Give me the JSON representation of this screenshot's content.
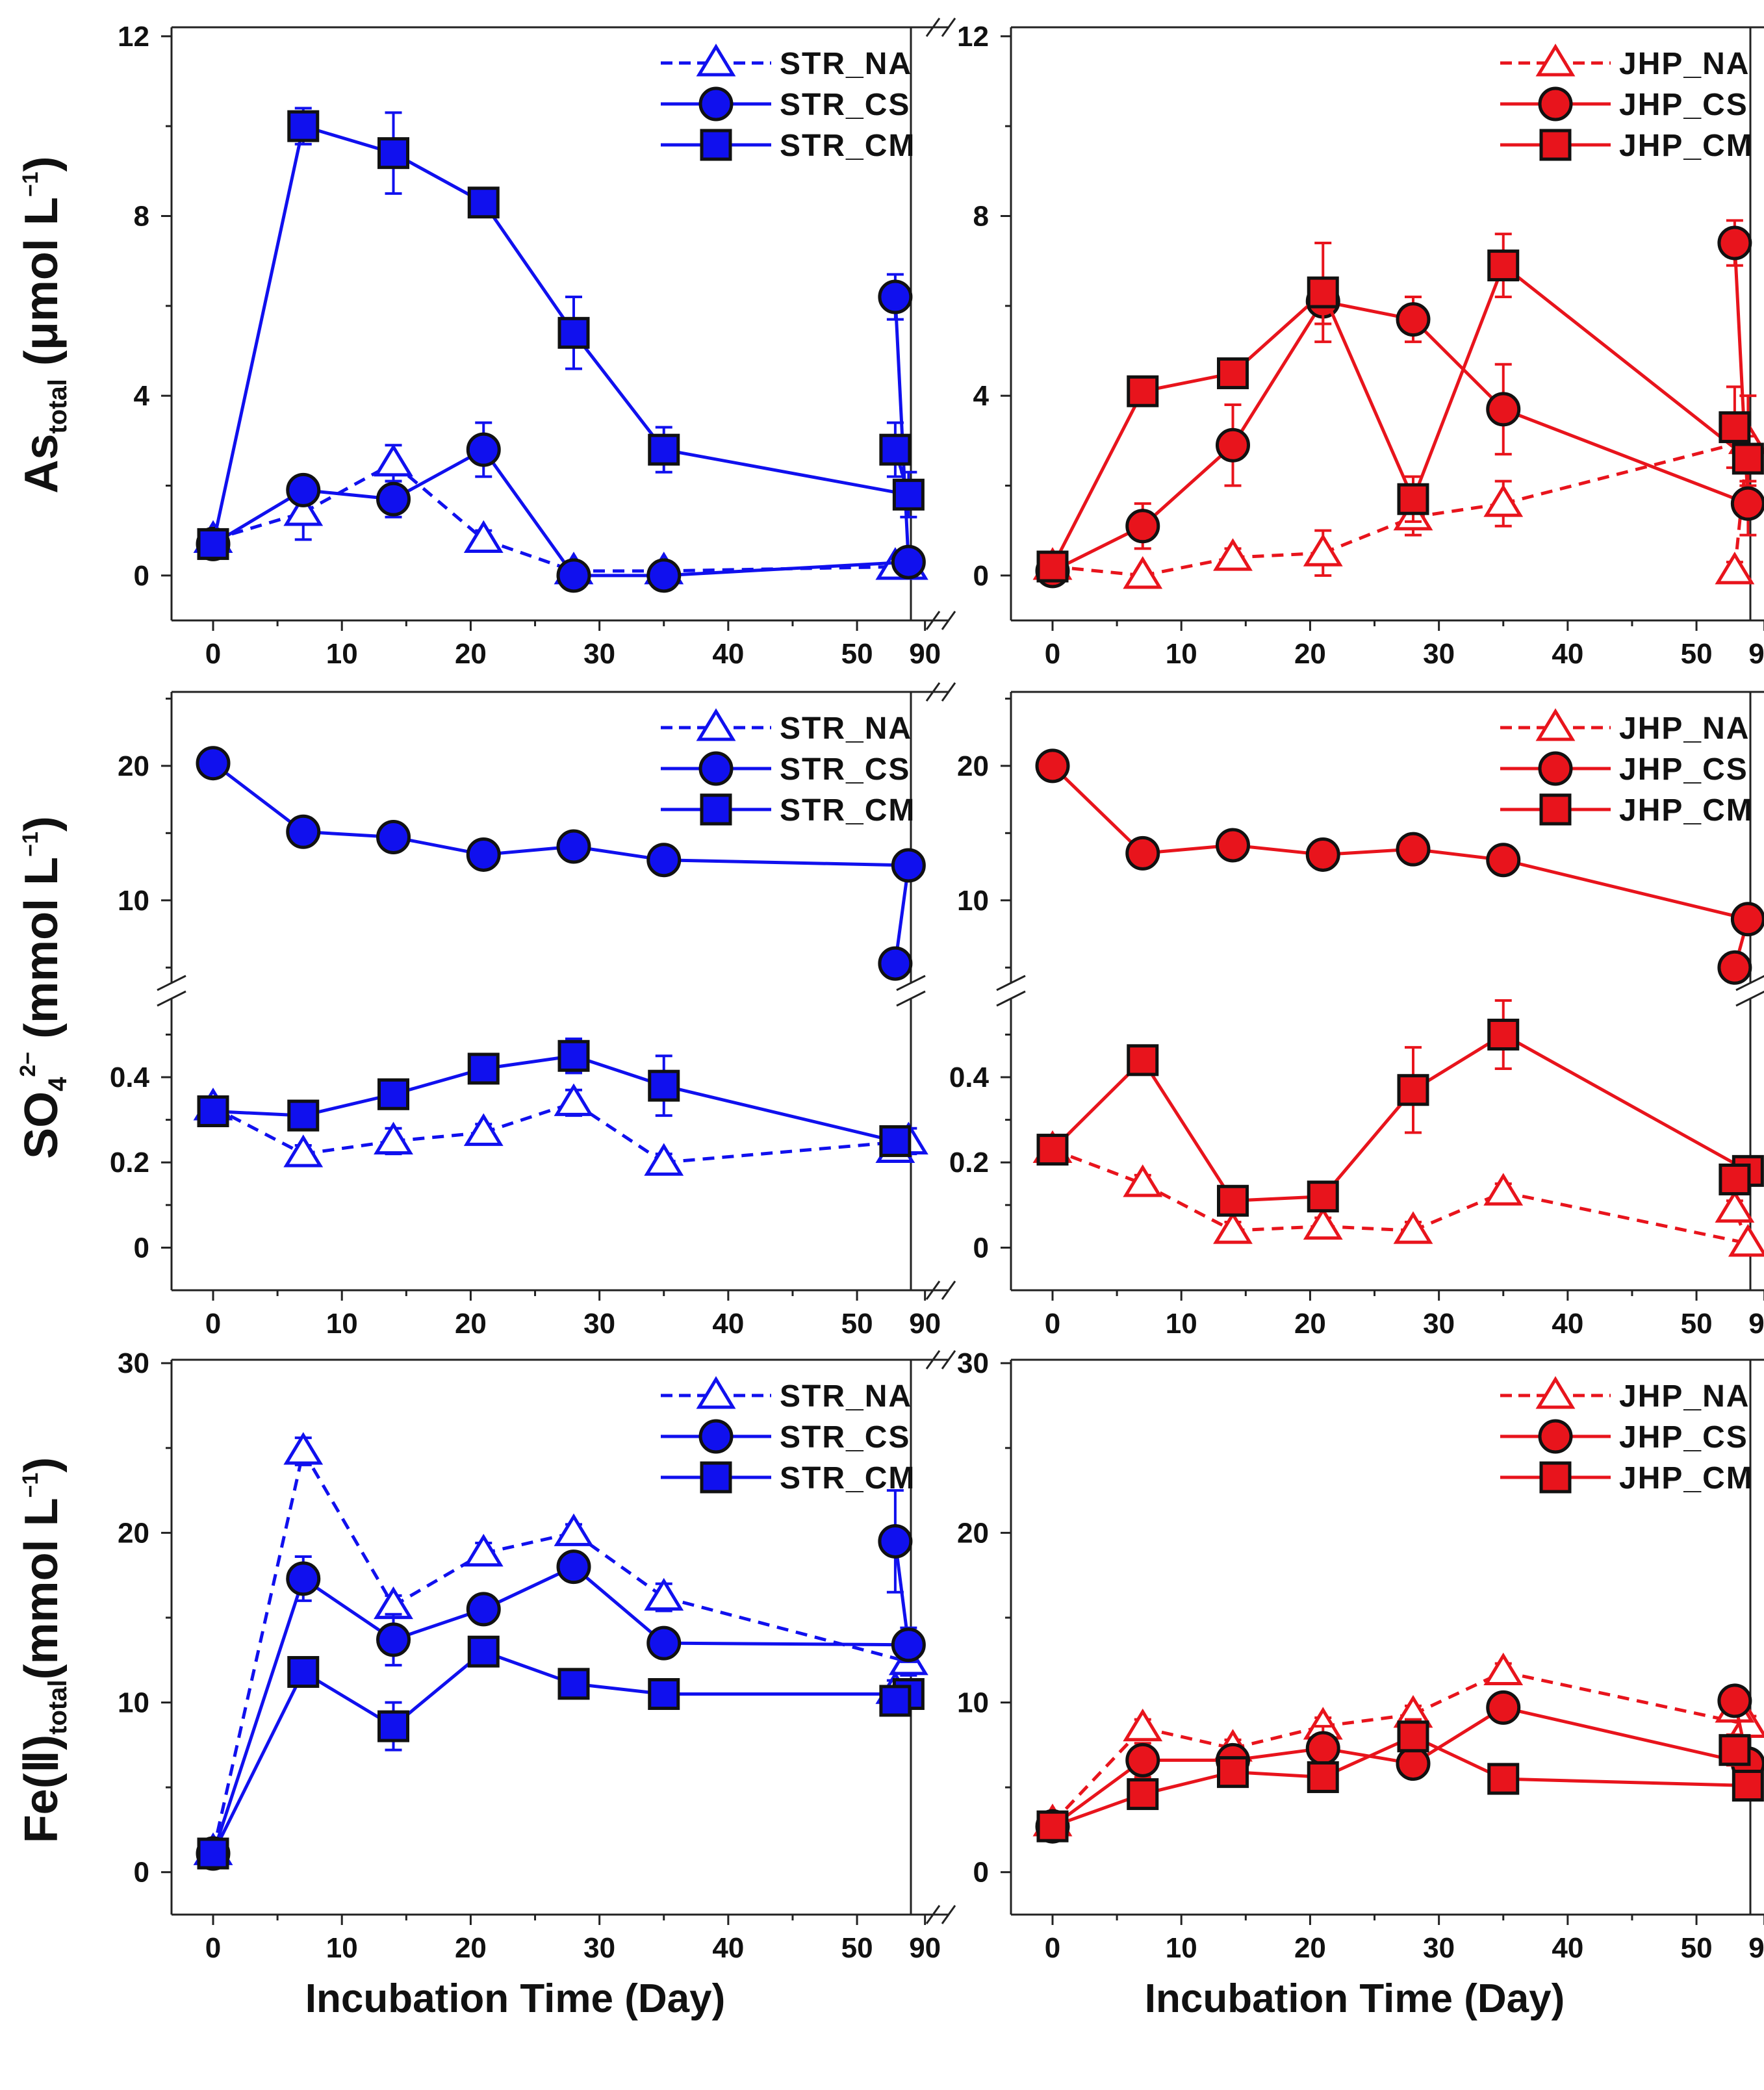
{
  "chart_data": [
    {
      "type": "line",
      "panel": "top-left",
      "ylim": [
        -1,
        12.2
      ],
      "yticks": [
        0,
        4,
        8,
        12
      ],
      "xlabel": "",
      "ylabel": "As total (μmol L−1)",
      "legend_position": "top-right",
      "categories": [
        0,
        7,
        14,
        21,
        28,
        35,
        54,
        94
      ],
      "series": [
        {
          "name": "STR_NA",
          "marker": "triangle",
          "dash": true,
          "color": "#1010ee",
          "values": [
            0.8,
            1.4,
            2.5,
            0.8,
            0.1,
            0.1,
            0.2,
            0.2
          ],
          "errors": [
            0.2,
            0.6,
            0.4,
            0.2,
            0.1,
            0.1,
            0.1,
            0.1
          ]
        },
        {
          "name": "STR_CS",
          "marker": "circle",
          "dash": false,
          "color": "#1010ee",
          "values": [
            0.7,
            1.9,
            1.7,
            2.8,
            0.0,
            0.0,
            0.3,
            6.2
          ],
          "errors": [
            0.2,
            0.3,
            0.4,
            0.6,
            0.1,
            0.1,
            0.1,
            0.5
          ]
        },
        {
          "name": "STR_CM",
          "marker": "square",
          "dash": false,
          "color": "#1010ee",
          "values": [
            0.7,
            10.0,
            9.4,
            8.3,
            5.4,
            2.8,
            1.8,
            2.8
          ],
          "errors": [
            0.2,
            0.4,
            0.9,
            0.2,
            0.8,
            0.5,
            0.5,
            0.6
          ]
        }
      ]
    },
    {
      "type": "line",
      "panel": "top-right",
      "ylim": [
        -1,
        12.2
      ],
      "yticks": [
        0,
        4,
        8,
        12
      ],
      "xlabel": "",
      "ylabel": "",
      "legend_position": "top-right",
      "categories": [
        0,
        7,
        14,
        21,
        28,
        35,
        54,
        94
      ],
      "series": [
        {
          "name": "JHP_NA",
          "marker": "triangle",
          "dash": true,
          "color": "#e8141c",
          "values": [
            0.2,
            0.0,
            0.4,
            0.5,
            1.3,
            1.6,
            3.0,
            0.1
          ],
          "errors": [
            0.1,
            0.1,
            0.2,
            0.5,
            0.4,
            0.5,
            1.0,
            0.2
          ]
        },
        {
          "name": "JHP_CS",
          "marker": "circle",
          "dash": false,
          "color": "#e8141c",
          "values": [
            0.1,
            1.1,
            2.9,
            6.1,
            5.7,
            3.7,
            1.6,
            7.4
          ],
          "errors": [
            0.1,
            0.5,
            0.9,
            0.5,
            0.5,
            1.0,
            0.7,
            0.5
          ]
        },
        {
          "name": "JHP_CM",
          "marker": "square",
          "dash": false,
          "color": "#e8141c",
          "values": [
            0.2,
            4.1,
            4.5,
            6.3,
            1.7,
            6.9,
            2.6,
            3.3
          ],
          "errors": [
            0.1,
            0.3,
            0.3,
            1.1,
            0.5,
            0.7,
            0.5,
            0.9
          ]
        }
      ]
    },
    {
      "type": "line",
      "panel": "middle-left",
      "ylabel": "SO4 2− (mmol L−1)",
      "broken_axis": {
        "upper_ylim": [
          4,
          25.5
        ],
        "upper_yticks": [
          10,
          20
        ],
        "lower_ylim": [
          -0.1,
          0.58
        ],
        "lower_yticks": [
          0,
          0.2,
          0.4
        ]
      },
      "legend_position": "top-right",
      "categories": [
        0,
        7,
        14,
        21,
        28,
        35,
        54,
        94
      ],
      "series": [
        {
          "name": "STR_NA",
          "marker": "triangle",
          "dash": true,
          "color": "#1010ee",
          "values": [
            0.33,
            0.22,
            0.25,
            0.27,
            0.34,
            0.2,
            0.25,
            0.23
          ],
          "errors": [
            0.02,
            0.02,
            0.03,
            0.02,
            0.03,
            0.02,
            0.03,
            0.02
          ]
        },
        {
          "name": "STR_CS",
          "marker": "circle",
          "dash": false,
          "color": "#1010ee",
          "values": [
            20.2,
            15.1,
            14.7,
            13.4,
            14.0,
            13.0,
            12.6,
            5.3
          ],
          "errors": [
            0.3,
            0.3,
            0.3,
            0.3,
            0.3,
            0.3,
            0.3,
            0.3
          ]
        },
        {
          "name": "STR_CM",
          "marker": "square",
          "dash": false,
          "color": "#1010ee",
          "values": [
            0.32,
            0.31,
            0.36,
            0.42,
            0.45,
            0.38,
            null,
            0.25
          ],
          "errors": [
            0.02,
            0.02,
            0.03,
            0.03,
            0.04,
            0.07,
            0,
            0.02
          ]
        }
      ]
    },
    {
      "type": "line",
      "panel": "middle-right",
      "ylabel": "",
      "broken_axis": {
        "upper_ylim": [
          4,
          25.5
        ],
        "upper_yticks": [
          10,
          20
        ],
        "lower_ylim": [
          -0.1,
          0.58
        ],
        "lower_yticks": [
          0,
          0.2,
          0.4
        ]
      },
      "legend_position": "top-right",
      "categories": [
        0,
        7,
        14,
        21,
        28,
        35,
        54,
        94
      ],
      "series": [
        {
          "name": "JHP_NA",
          "marker": "triangle",
          "dash": true,
          "color": "#e8141c",
          "values": [
            0.23,
            0.15,
            0.04,
            0.05,
            0.04,
            0.13,
            0.01,
            0.09
          ],
          "errors": [
            0.02,
            0.02,
            0.02,
            0.02,
            0.02,
            0.02,
            0.01,
            0.02
          ]
        },
        {
          "name": "JHP_CS",
          "marker": "circle",
          "dash": false,
          "color": "#e8141c",
          "values": [
            20.0,
            13.5,
            14.1,
            13.4,
            13.8,
            13.0,
            8.6,
            5.0
          ],
          "errors": [
            0.3,
            0.3,
            0.3,
            0.3,
            0.3,
            0.3,
            0.3,
            0.3
          ]
        },
        {
          "name": "JHP_CM",
          "marker": "square",
          "dash": false,
          "color": "#e8141c",
          "values": [
            0.23,
            0.44,
            0.11,
            0.12,
            0.37,
            0.5,
            0.18,
            0.16
          ],
          "errors": [
            0.02,
            0.02,
            0.02,
            0.03,
            0.1,
            0.08,
            0.02,
            0.02
          ]
        }
      ]
    },
    {
      "type": "line",
      "panel": "bottom-left",
      "ylim": [
        -2.5,
        30.2
      ],
      "yticks": [
        0,
        10,
        20,
        30
      ],
      "xlabel": "Incubation Time (Day)",
      "ylabel": "Fe(II) total (mmol L−1)",
      "legend_position": "top-right",
      "categories": [
        0,
        7,
        14,
        21,
        28,
        35,
        54,
        94
      ],
      "series": [
        {
          "name": "STR_NA",
          "marker": "triangle",
          "dash": true,
          "color": "#1010ee",
          "values": [
            1.2,
            24.8,
            15.7,
            18.8,
            20.0,
            16.2,
            12.4,
            10.7
          ],
          "errors": [
            0.3,
            0.8,
            0.6,
            0.6,
            0.5,
            0.8,
            0.8,
            0.6
          ]
        },
        {
          "name": "STR_CS",
          "marker": "circle",
          "dash": false,
          "color": "#1010ee",
          "values": [
            1.1,
            17.3,
            13.7,
            15.5,
            18.0,
            13.5,
            13.4,
            19.5
          ],
          "errors": [
            0.3,
            1.3,
            1.5,
            0.5,
            0.5,
            0.5,
            1.0,
            3.0
          ]
        },
        {
          "name": "STR_CM",
          "marker": "square",
          "dash": false,
          "color": "#1010ee",
          "values": [
            1.1,
            11.8,
            8.6,
            13.0,
            11.1,
            10.5,
            10.5,
            10.1
          ],
          "errors": [
            0.3,
            0.5,
            1.4,
            0.5,
            0.5,
            0.5,
            0.5,
            0.5
          ]
        }
      ]
    },
    {
      "type": "line",
      "panel": "bottom-right",
      "ylim": [
        -2.5,
        30.2
      ],
      "yticks": [
        0,
        10,
        20,
        30
      ],
      "xlabel": "Incubation Time (Day)",
      "ylabel": "",
      "legend_position": "top-right",
      "categories": [
        0,
        7,
        14,
        21,
        28,
        35,
        54,
        94
      ],
      "series": [
        {
          "name": "JHP_NA",
          "marker": "triangle",
          "dash": true,
          "color": "#e8141c",
          "values": [
            2.9,
            8.5,
            7.3,
            8.6,
            9.3,
            11.8,
            8.7,
            9.6
          ],
          "errors": [
            0.3,
            0.5,
            0.5,
            0.5,
            0.5,
            0.5,
            0.5,
            0.5
          ]
        },
        {
          "name": "JHP_CS",
          "marker": "circle",
          "dash": false,
          "color": "#e8141c",
          "values": [
            2.7,
            6.6,
            6.6,
            7.3,
            6.4,
            9.7,
            6.4,
            10.1
          ],
          "errors": [
            0.3,
            1.0,
            0.6,
            1.3,
            0.5,
            0.7,
            0.5,
            0.5
          ]
        },
        {
          "name": "JHP_CM",
          "marker": "square",
          "dash": false,
          "color": "#e8141c",
          "values": [
            2.7,
            4.6,
            5.9,
            5.6,
            8.0,
            5.5,
            5.1,
            7.2
          ],
          "errors": [
            0.3,
            0.7,
            0.6,
            0.7,
            1.0,
            0.7,
            0.6,
            0.9
          ]
        }
      ]
    }
  ],
  "axis_text": {
    "x_ticks": [
      "0",
      "10",
      "20",
      "30",
      "40",
      "50",
      "90"
    ],
    "x_title": "Incubation Time (Day)",
    "y_titles": {
      "top": {
        "main": "As",
        "sub": "total",
        "unit": " (μmol L",
        "sup": "−1",
        "close": ")"
      },
      "middle": {
        "main": "SO",
        "sub": "4",
        "sup": "2−",
        "unit": " (mmol L",
        "sup2": "−1",
        "close": ")"
      },
      "bottom": {
        "main": "Fe(",
        "roman": "Ⅱ",
        "paren": ")",
        "sub": "total",
        "unit": "(mmol L",
        "sup": "−1",
        "close": ")"
      }
    }
  }
}
